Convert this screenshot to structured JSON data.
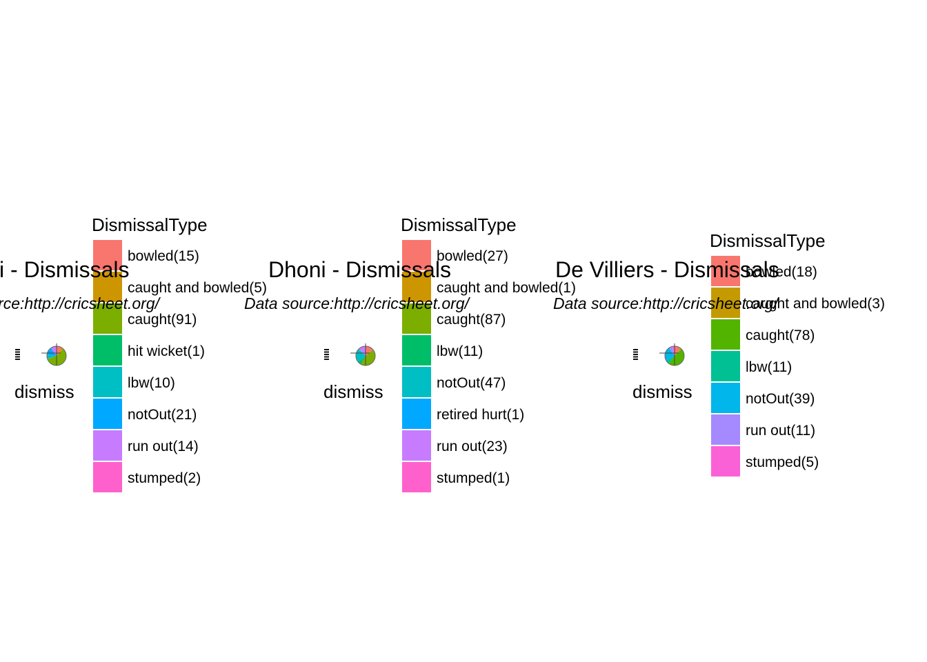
{
  "chart_data": [
    {
      "type": "pie",
      "title": "Kohli - Dismissals",
      "subtitle": "Data source:http://cricsheet.org/",
      "axis_label": "dismiss",
      "legend_title": "DismissalType",
      "legend_placement": "right",
      "slices": [
        {
          "label": "bowled(15)",
          "value": 15,
          "color": "#F8766D"
        },
        {
          "label": "caught and bowled(5)",
          "value": 5,
          "color": "#CD9600"
        },
        {
          "label": "caught(91)",
          "value": 91,
          "color": "#7CAE00"
        },
        {
          "label": "hit wicket(1)",
          "value": 1,
          "color": "#00BE67"
        },
        {
          "label": "lbw(10)",
          "value": 10,
          "color": "#00BFC4"
        },
        {
          "label": "notOut(21)",
          "value": 21,
          "color": "#00A9FF"
        },
        {
          "label": "run out(14)",
          "value": 14,
          "color": "#C77CFF"
        },
        {
          "label": "stumped(2)",
          "value": 2,
          "color": "#FF61CC"
        }
      ]
    },
    {
      "type": "pie",
      "title": "Dhoni - Dismissals",
      "subtitle": "Data source:http://cricsheet.org/",
      "axis_label": "dismiss",
      "legend_title": "DismissalType",
      "legend_placement": "right",
      "slices": [
        {
          "label": "bowled(27)",
          "value": 27,
          "color": "#F8766D"
        },
        {
          "label": "caught and bowled(1)",
          "value": 1,
          "color": "#CD9600"
        },
        {
          "label": "caught(87)",
          "value": 87,
          "color": "#7CAE00"
        },
        {
          "label": "lbw(11)",
          "value": 11,
          "color": "#00BE67"
        },
        {
          "label": "notOut(47)",
          "value": 47,
          "color": "#00BFC4"
        },
        {
          "label": "retired hurt(1)",
          "value": 1,
          "color": "#00A9FF"
        },
        {
          "label": "run out(23)",
          "value": 23,
          "color": "#C77CFF"
        },
        {
          "label": "stumped(1)",
          "value": 1,
          "color": "#FF61CC"
        }
      ]
    },
    {
      "type": "pie",
      "title": "De Villiers - Dismissals",
      "subtitle": "Data source:http://cricsheet.org/",
      "axis_label": "dismiss",
      "legend_title": "DismissalType",
      "legend_placement": "right",
      "slices": [
        {
          "label": "bowled(18)",
          "value": 18,
          "color": "#F8766D"
        },
        {
          "label": "caught and bowled(3)",
          "value": 3,
          "color": "#C49A00"
        },
        {
          "label": "caught(78)",
          "value": 78,
          "color": "#53B400"
        },
        {
          "label": "lbw(11)",
          "value": 11,
          "color": "#00C094"
        },
        {
          "label": "notOut(39)",
          "value": 39,
          "color": "#00B6EB"
        },
        {
          "label": "run out(11)",
          "value": 11,
          "color": "#A58AFF"
        },
        {
          "label": "stumped(5)",
          "value": 5,
          "color": "#FB61D7"
        }
      ]
    }
  ]
}
